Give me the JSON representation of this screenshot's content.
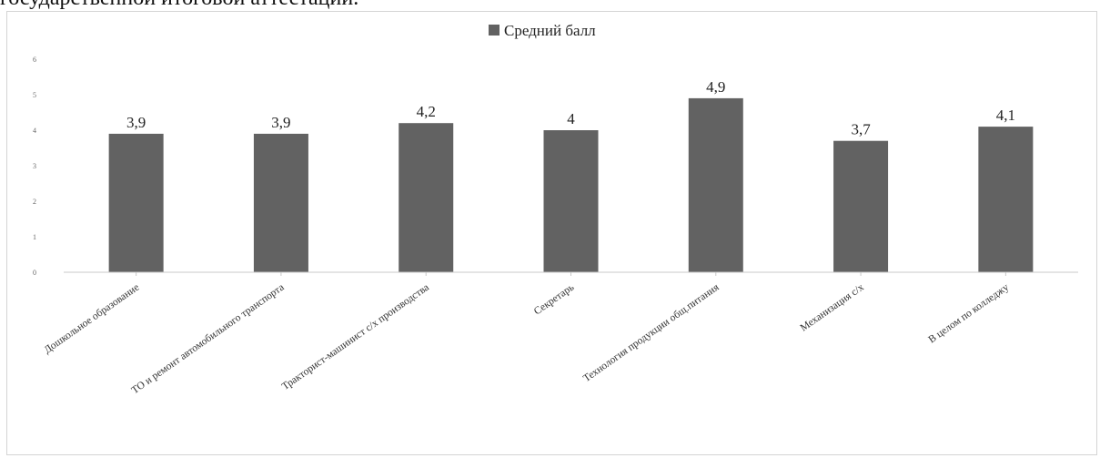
{
  "page": {
    "heading_text": "государственной итоговой аттестации."
  },
  "chart_data": {
    "type": "bar",
    "categories": [
      "Дошкольное образование",
      "ТО и ремонт автомобильного транспорта",
      "Тракторист-машинист с/х производства",
      "Секретарь",
      "Технология продукции общ.питания",
      "Механизация с/х",
      "В целом по колледжу"
    ],
    "series": [
      {
        "name": "Средний балл",
        "values": [
          3.9,
          3.9,
          4.2,
          4,
          4.9,
          3.7,
          4.1
        ],
        "labels": [
          "3,9",
          "3,9",
          "4,2",
          "4",
          "4,9",
          "3,7",
          "4,1"
        ],
        "color": "#626262"
      }
    ],
    "ylim": [
      0,
      6
    ],
    "yticks": [
      0,
      1,
      2,
      3,
      4,
      5,
      6
    ],
    "grid": false,
    "legend_position": "top",
    "title": "",
    "xlabel": "",
    "ylabel": ""
  }
}
